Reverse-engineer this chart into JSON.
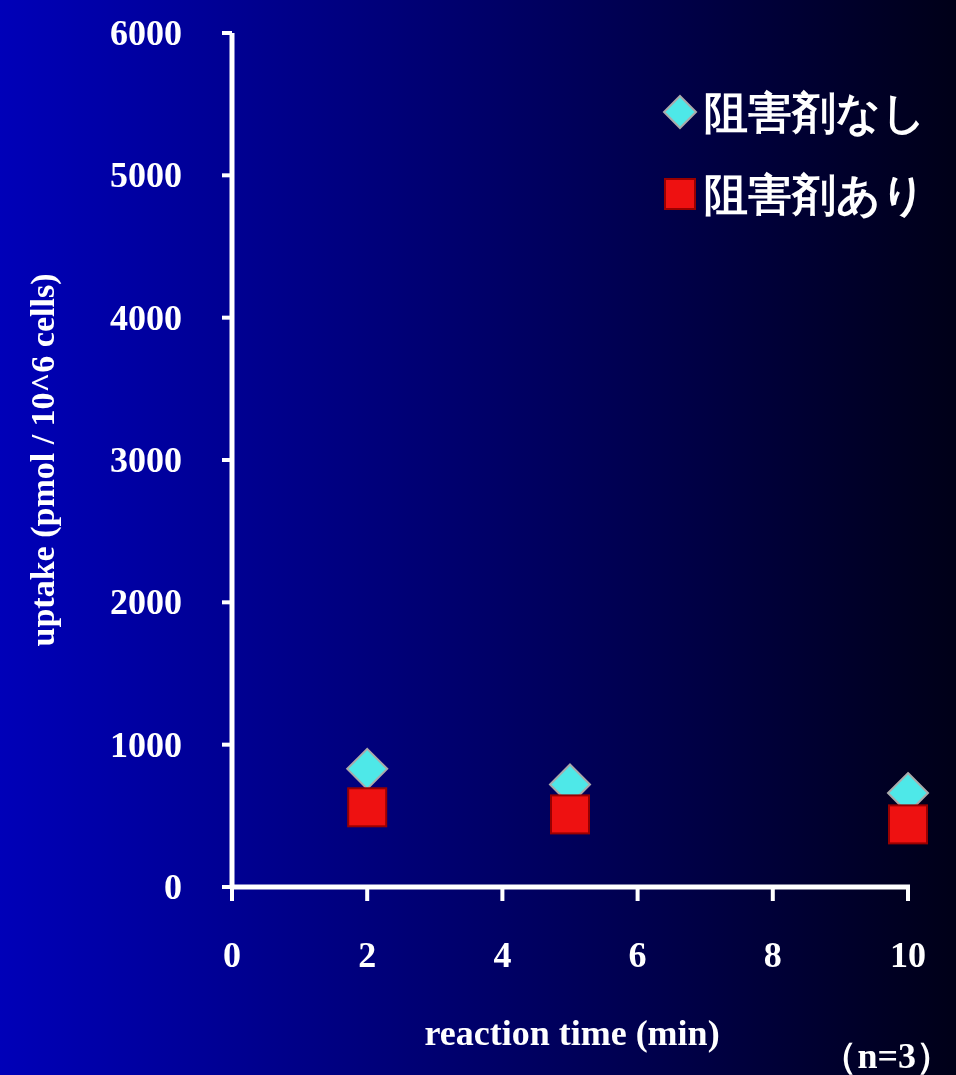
{
  "chart_data": {
    "type": "scatter",
    "xlabel": "reaction time (min)",
    "ylabel": "uptake (pmol / 10^6 cells)",
    "annotations": [
      "（n=3）"
    ],
    "x": [
      2,
      5,
      10
    ],
    "series": [
      {
        "name": "阻害剤なし",
        "color": "#4ee8e8",
        "marker": "diamond",
        "values": [
          830,
          720,
          660
        ]
      },
      {
        "name": "阻害剤あり",
        "color": "#ee1111",
        "marker": "square",
        "values": [
          560,
          510,
          440
        ]
      }
    ],
    "xlim": [
      0,
      10
    ],
    "xticks": [
      0,
      2,
      4,
      6,
      8,
      10
    ],
    "ylim": [
      0,
      6000
    ],
    "yticks": [
      0,
      1000,
      2000,
      3000,
      4000,
      5000,
      6000
    ],
    "grid": false,
    "legend": "top right"
  }
}
